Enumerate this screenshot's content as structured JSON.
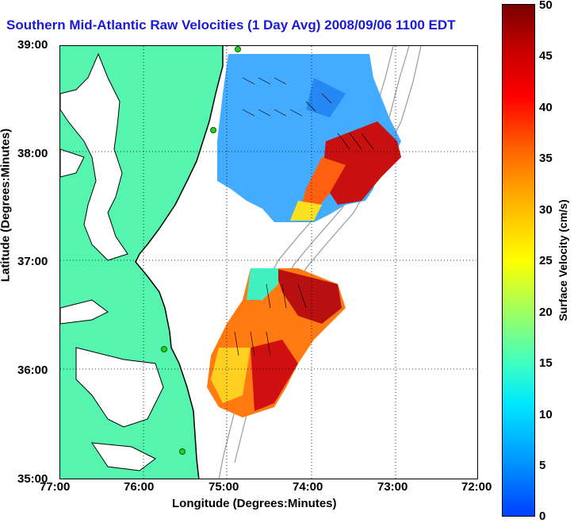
{
  "title": "Southern Mid-Atlantic Raw Velocities (1 Day Avg) 2008/09/06 1100 EDT",
  "axes": {
    "xlabel": "Longitude (Degrees:Minutes)",
    "ylabel": "Latitude (Degrees:Minutes)",
    "x_ticks": [
      "77:00",
      "76:00",
      "75:00",
      "74:00",
      "73:00",
      "72:00"
    ],
    "y_ticks": [
      "39:00",
      "38:00",
      "37:00",
      "36:00",
      "35:00"
    ]
  },
  "colorbar": {
    "label": "Surface Velocity (cm/s)",
    "ticks": [
      "50",
      "45",
      "40",
      "35",
      "30",
      "25",
      "20",
      "15",
      "10",
      "5",
      "0"
    ],
    "min": 0,
    "max": 50
  },
  "colors": {
    "land": "#55f5b0",
    "coast": "#000000",
    "bathymetry": "#9a9a9a",
    "grid": "#000000",
    "title": "#1a1ad6"
  },
  "stations": "green circle markers"
}
